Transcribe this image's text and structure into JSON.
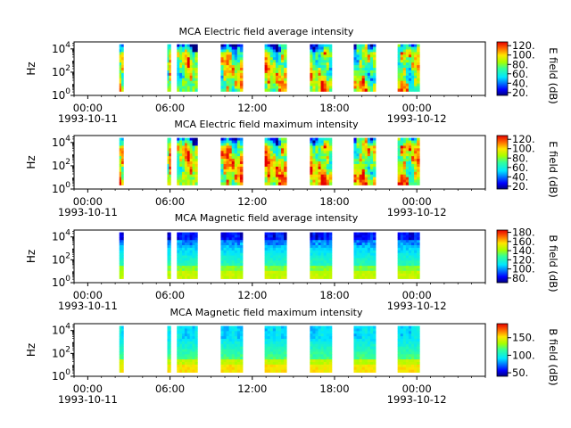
{
  "chart_data": [
    {
      "type": "heatmap",
      "title": "MCA  Electric field average intensity",
      "ylabel": "Hz",
      "colorbar_label": "E field (dB)",
      "colorbar_ticks": [
        "20.",
        "40.",
        "60.",
        "80.",
        "100.",
        "120."
      ],
      "colorbar_range": [
        14,
        128
      ],
      "quantity": "electric",
      "stat": "average",
      "y_scale": "log",
      "ylim_exponent": [
        0,
        4.6
      ],
      "y_ticks": [
        {
          "base": "10",
          "exp": "0"
        },
        {
          "base": "10",
          "exp": "2"
        },
        {
          "base": "10",
          "exp": "4"
        }
      ]
    },
    {
      "type": "heatmap",
      "title": "MCA  Electric field maximum intensity",
      "ylabel": "Hz",
      "colorbar_label": "E field (dB)",
      "colorbar_ticks": [
        "20.",
        "40.",
        "60.",
        "80.",
        "100.",
        "120."
      ],
      "colorbar_range": [
        14,
        128
      ],
      "quantity": "electric",
      "stat": "maximum",
      "y_scale": "log",
      "ylim_exponent": [
        0,
        4.6
      ],
      "y_ticks": [
        {
          "base": "10",
          "exp": "0"
        },
        {
          "base": "10",
          "exp": "2"
        },
        {
          "base": "10",
          "exp": "4"
        }
      ]
    },
    {
      "type": "heatmap",
      "title": "MCA  Magnetic field average intensity",
      "ylabel": "Hz",
      "colorbar_label": "B field (dB)",
      "colorbar_ticks": [
        "80.",
        "100.",
        "120.",
        "140.",
        "160.",
        "180."
      ],
      "colorbar_range": [
        70,
        185
      ],
      "quantity": "magnetic",
      "stat": "average",
      "y_scale": "log",
      "ylim_exponent": [
        0,
        4.6
      ],
      "y_ticks": [
        {
          "base": "10",
          "exp": "0"
        },
        {
          "base": "10",
          "exp": "2"
        },
        {
          "base": "10",
          "exp": "4"
        }
      ]
    },
    {
      "type": "heatmap",
      "title": "MCA  Magnetic field maximum intensity",
      "ylabel": "Hz",
      "colorbar_label": "B field (dB)",
      "colorbar_ticks": [
        "50.",
        "100.",
        "150."
      ],
      "colorbar_range": [
        40,
        190
      ],
      "quantity": "magnetic",
      "stat": "maximum",
      "y_scale": "log",
      "ylim_exponent": [
        0,
        4.6
      ],
      "y_ticks": [
        {
          "base": "10",
          "exp": "0"
        },
        {
          "base": "10",
          "exp": "2"
        },
        {
          "base": "10",
          "exp": "4"
        }
      ]
    }
  ],
  "x_axis": {
    "range_hours": [
      -1,
      29
    ],
    "ticks": [
      {
        "hour": 0,
        "label": "00:00",
        "date": "1993-10-11"
      },
      {
        "hour": 6,
        "label": "06:00",
        "date": ""
      },
      {
        "hour": 12,
        "label": "12:00",
        "date": ""
      },
      {
        "hour": 18,
        "label": "18:00",
        "date": ""
      },
      {
        "hour": 24,
        "label": "00:00",
        "date": "1993-10-12"
      }
    ]
  },
  "data_segments_hours": [
    [
      2.3,
      2.6
    ],
    [
      5.8,
      6.05
    ],
    [
      6.5,
      8.0
    ],
    [
      9.7,
      11.3
    ],
    [
      12.9,
      14.5
    ],
    [
      16.2,
      17.8
    ],
    [
      19.4,
      21.0
    ],
    [
      22.6,
      24.2
    ]
  ]
}
